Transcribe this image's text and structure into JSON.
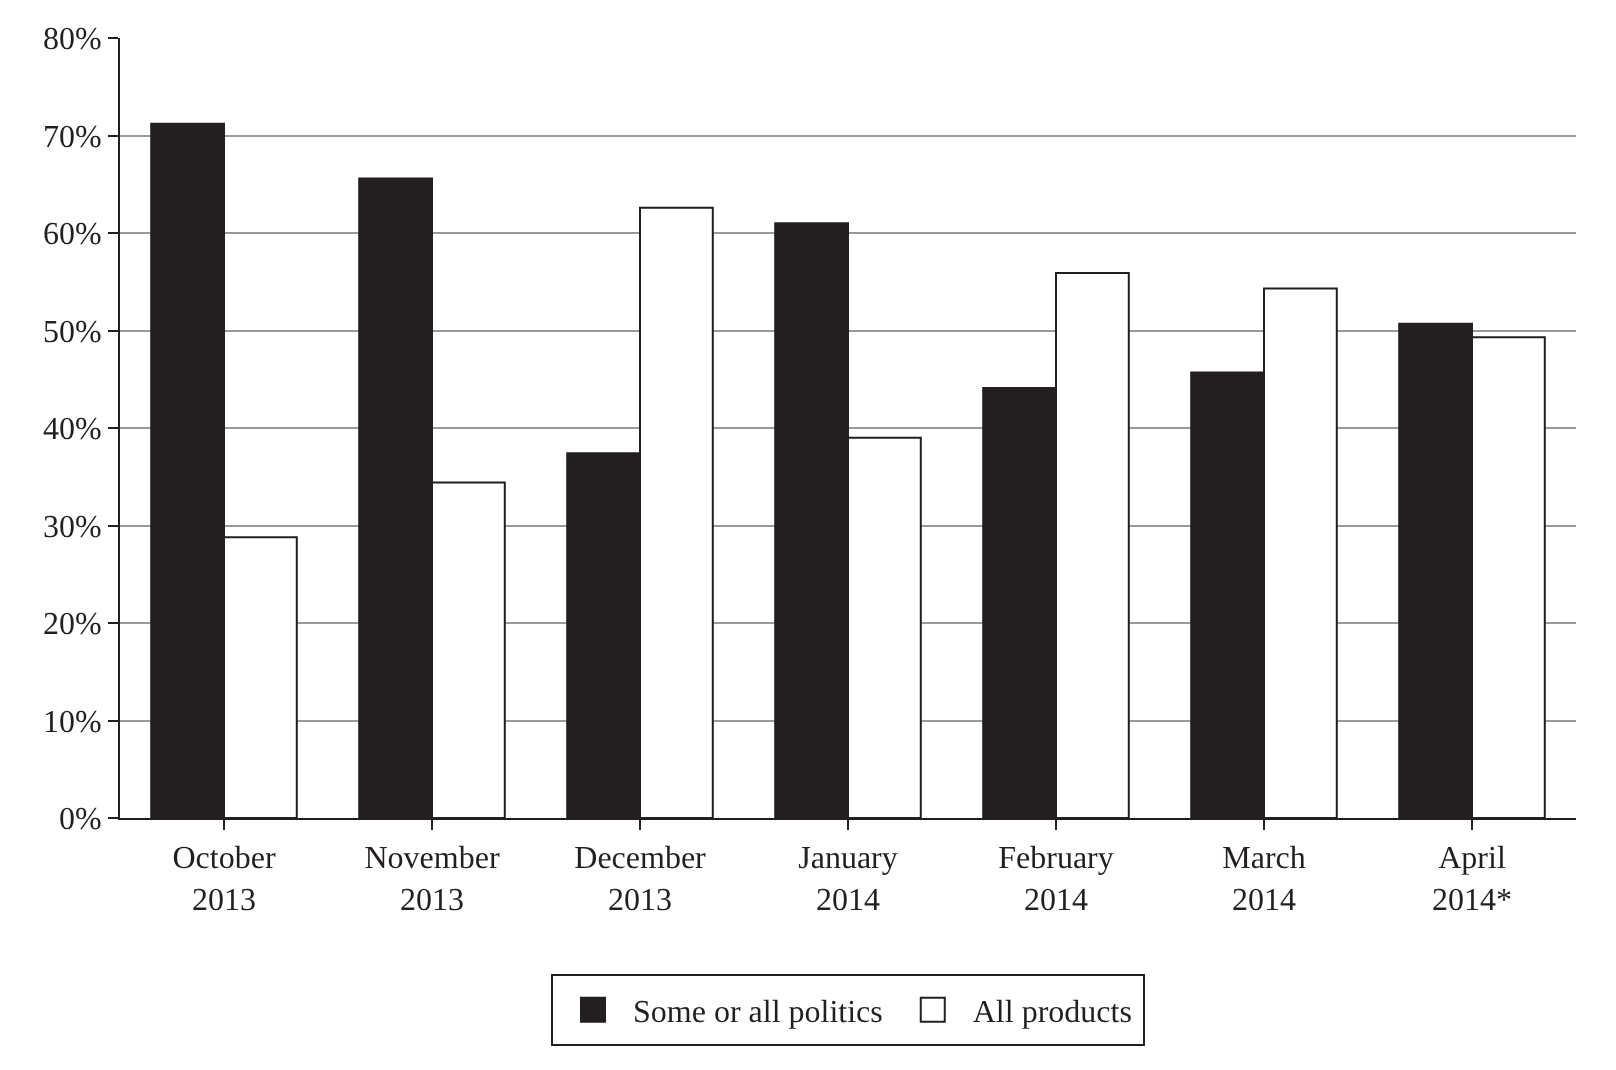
{
  "chart_data": {
    "type": "bar",
    "categories": [
      "October 2013",
      "November 2013",
      "December 2013",
      "January 2014",
      "February 2014",
      "March 2014",
      "April 2014*"
    ],
    "series": [
      {
        "name": "Some or all politics",
        "color": "#231f20",
        "values": [
          71.2,
          65.6,
          37.4,
          61.0,
          44.1,
          45.7,
          50.7
        ]
      },
      {
        "name": "All products",
        "color": "#ffffff",
        "values": [
          28.8,
          34.4,
          62.6,
          39.0,
          55.9,
          54.3,
          49.3
        ]
      }
    ],
    "ylim": [
      0,
      80
    ],
    "yticks": [
      {
        "value": 0,
        "label": "0%"
      },
      {
        "value": 10,
        "label": "10%"
      },
      {
        "value": 20,
        "label": "20%"
      },
      {
        "value": 30,
        "label": "30%"
      },
      {
        "value": 40,
        "label": "40%"
      },
      {
        "value": 50,
        "label": "50%"
      },
      {
        "value": 60,
        "label": "60%"
      },
      {
        "value": 70,
        "label": "70%"
      },
      {
        "value": 80,
        "label": "80%"
      }
    ],
    "grid": "y",
    "legend": "bottom"
  }
}
